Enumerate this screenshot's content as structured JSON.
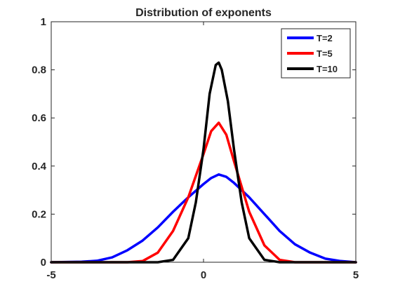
{
  "chart_data": {
    "type": "line",
    "title": "Distribution of exponents",
    "xlabel": "",
    "ylabel": "",
    "xlim": [
      -5,
      5
    ],
    "ylim": [
      0,
      1
    ],
    "xticks": [
      "-5",
      "0",
      "5"
    ],
    "yticks": [
      "0",
      "0.2",
      "0.4",
      "0.6",
      "0.8",
      "1"
    ],
    "grid": false,
    "legend_position": "top-right",
    "series": [
      {
        "name": "T=2",
        "color": "#0000ff",
        "x": [
          -5,
          -4,
          -3.5,
          -3,
          -2.5,
          -2,
          -1.5,
          -1,
          -0.5,
          0,
          0.25,
          0.5,
          0.75,
          1,
          1.5,
          2,
          2.5,
          3,
          3.5,
          4,
          4.5,
          5
        ],
        "y": [
          0,
          0.002,
          0.006,
          0.02,
          0.05,
          0.09,
          0.145,
          0.21,
          0.27,
          0.325,
          0.35,
          0.365,
          0.355,
          0.33,
          0.27,
          0.2,
          0.13,
          0.075,
          0.04,
          0.015,
          0.005,
          0
        ]
      },
      {
        "name": "T=5",
        "color": "#ff0000",
        "x": [
          -5,
          -2.5,
          -2,
          -1.5,
          -1,
          -0.5,
          0,
          0.25,
          0.5,
          0.75,
          1,
          1.5,
          2,
          2.5,
          3,
          5
        ],
        "y": [
          0,
          0,
          0.005,
          0.04,
          0.13,
          0.27,
          0.45,
          0.545,
          0.58,
          0.53,
          0.42,
          0.21,
          0.07,
          0.01,
          0,
          0
        ]
      },
      {
        "name": "T=10",
        "color": "#000000",
        "x": [
          -5,
          -1.5,
          -1,
          -0.5,
          -0.25,
          0,
          0.2,
          0.4,
          0.5,
          0.6,
          0.8,
          1,
          1.25,
          1.5,
          2,
          2.5,
          5
        ],
        "y": [
          0,
          0,
          0.01,
          0.1,
          0.25,
          0.47,
          0.7,
          0.82,
          0.83,
          0.8,
          0.67,
          0.47,
          0.25,
          0.1,
          0.01,
          0,
          0
        ]
      }
    ]
  }
}
